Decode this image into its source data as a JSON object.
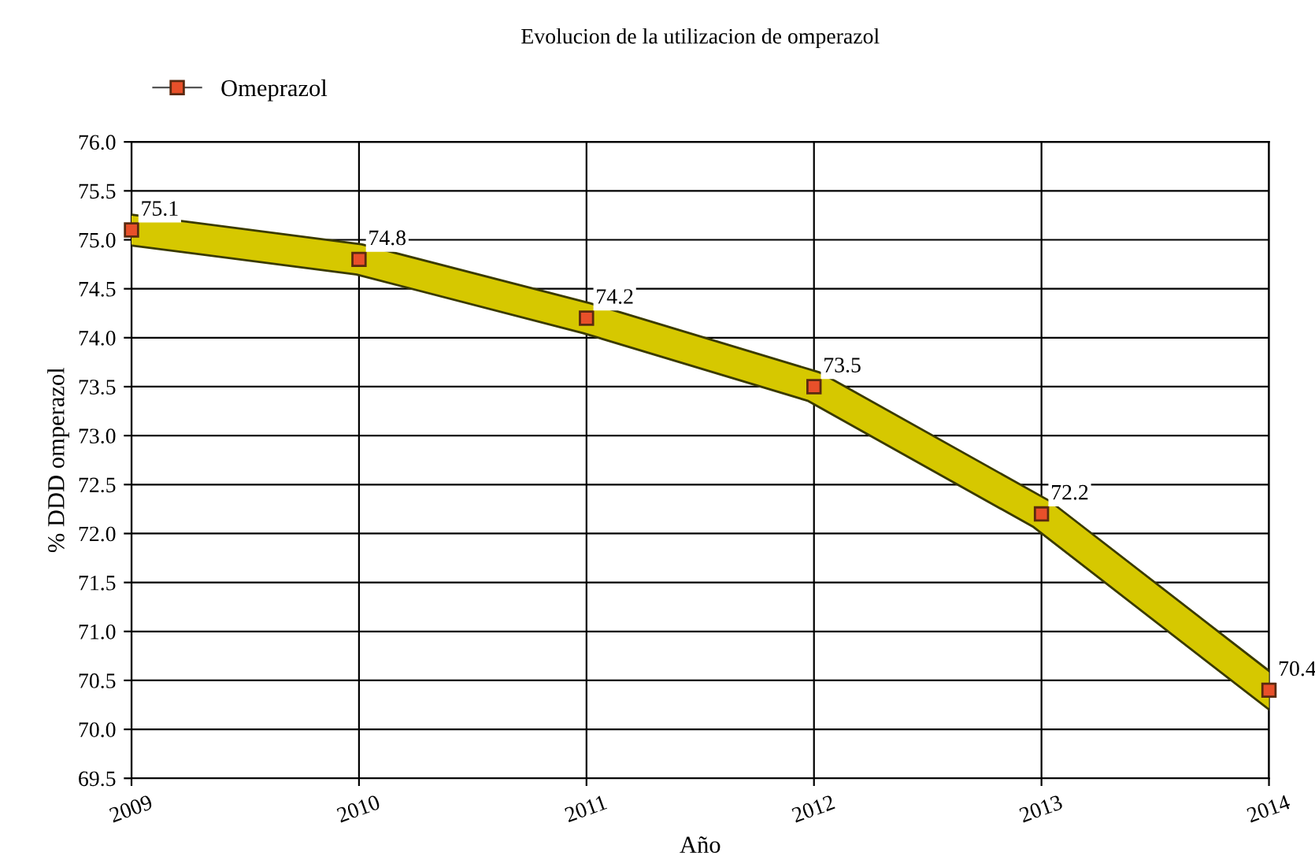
{
  "chart_data": {
    "type": "line",
    "title": "Evolucion de la utilizacion de omperazol",
    "xlabel": "Año",
    "ylabel": "% DDD omperazol",
    "categories": [
      "2009",
      "2010",
      "2011",
      "2012",
      "2013",
      "2014"
    ],
    "series": [
      {
        "name": "Omeprazol",
        "color": "#d6c800",
        "values": [
          75.1,
          74.8,
          74.2,
          73.5,
          72.2,
          70.4
        ]
      }
    ],
    "ylim": [
      69.5,
      76.0
    ],
    "yticks": [
      {
        "value": 69.5,
        "label": "69.5"
      },
      {
        "value": 70.0,
        "label": "70.0"
      },
      {
        "value": 70.5,
        "label": "70.5"
      },
      {
        "value": 71.0,
        "label": "71.0"
      },
      {
        "value": 71.5,
        "label": "71.5"
      },
      {
        "value": 72.0,
        "label": "72.0"
      },
      {
        "value": 72.5,
        "label": "72.5"
      },
      {
        "value": 73.0,
        "label": "73.0"
      },
      {
        "value": 73.5,
        "label": "73.5"
      },
      {
        "value": 74.0,
        "label": "74.0"
      },
      {
        "value": 74.5,
        "label": "74.5"
      },
      {
        "value": 75.0,
        "label": "75.0"
      },
      {
        "value": 75.5,
        "label": "75.5"
      },
      {
        "value": 76.0,
        "label": "76.0"
      }
    ],
    "grid": true,
    "legend": "top left",
    "marker": "square",
    "line_style": "solid",
    "data_labels": true
  }
}
